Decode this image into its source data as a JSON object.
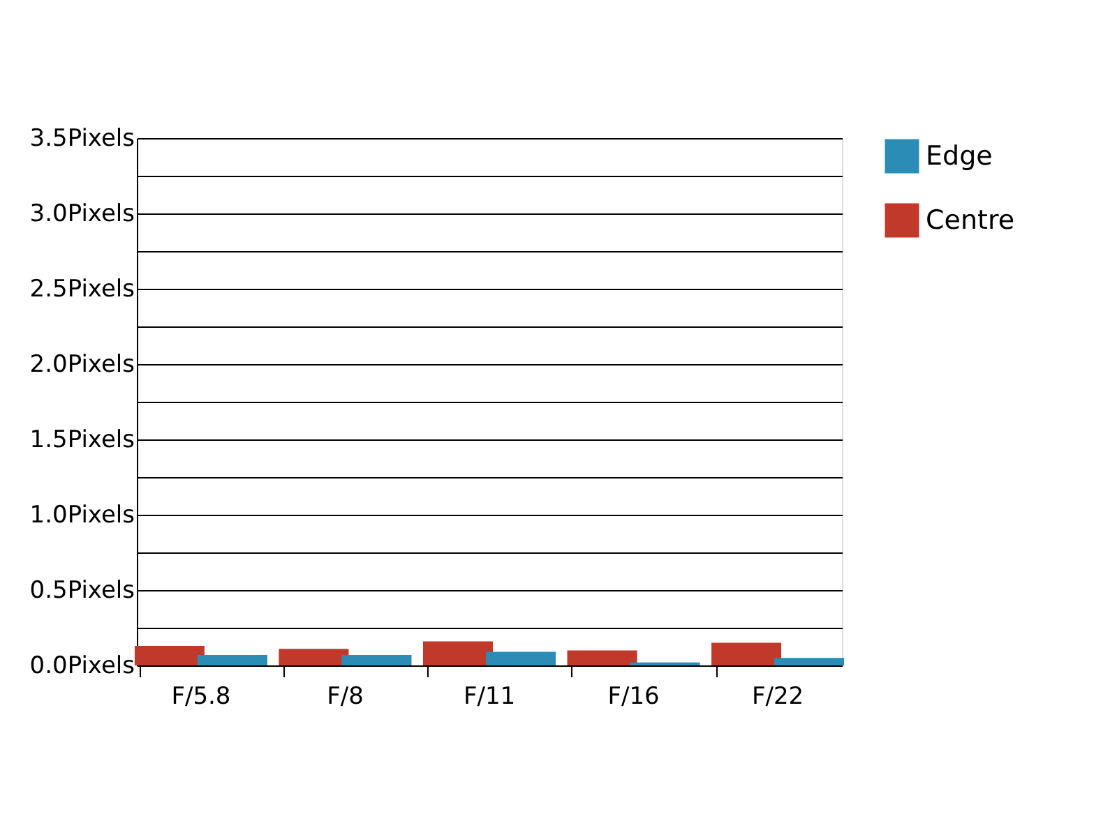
{
  "chart_data": {
    "type": "bar",
    "categories": [
      "F/5.8",
      "F/8",
      "F/11",
      "F/16",
      "F/22"
    ],
    "series": [
      {
        "name": "Centre",
        "color": "#c0392b",
        "values": [
          0.13,
          0.11,
          0.16,
          0.1,
          0.15
        ]
      },
      {
        "name": "Edge",
        "color": "#2b8cb5",
        "values": [
          0.07,
          0.07,
          0.09,
          0.02,
          0.05
        ]
      }
    ],
    "ylim": [
      0,
      3.5
    ],
    "yticks": [
      {
        "value": 0,
        "label": "0.0Pixels"
      },
      {
        "value": 0.25,
        "label": null
      },
      {
        "value": 0.5,
        "label": "0.5Pixels"
      },
      {
        "value": 0.75,
        "label": null
      },
      {
        "value": 1.0,
        "label": "1.0Pixels"
      },
      {
        "value": 1.25,
        "label": null
      },
      {
        "value": 1.5,
        "label": "1.5Pixels"
      },
      {
        "value": 1.75,
        "label": null
      },
      {
        "value": 2.0,
        "label": "2.0Pixels"
      },
      {
        "value": 2.25,
        "label": null
      },
      {
        "value": 2.5,
        "label": "2.5Pixels"
      },
      {
        "value": 2.75,
        "label": null
      },
      {
        "value": 3.0,
        "label": "3.0Pixels"
      },
      {
        "value": 3.25,
        "label": null
      },
      {
        "value": 3.5,
        "label": "3.5Pixels"
      }
    ],
    "grid": "y",
    "legend": "top right"
  }
}
